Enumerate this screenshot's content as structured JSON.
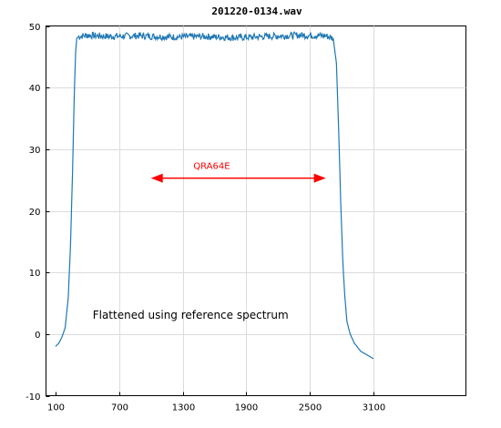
{
  "chart_data": {
    "type": "line",
    "title": "201220-0134.wav",
    "xlabel": "",
    "ylabel": "",
    "xlim": [
      0,
      4000
    ],
    "ylim": [
      -10,
      50
    ],
    "xticks": [
      100,
      700,
      1300,
      1900,
      2500,
      3100
    ],
    "yticks": [
      -10,
      0,
      10,
      20,
      30,
      40,
      50
    ],
    "grid": true,
    "series": [
      {
        "color": "#1f77b4",
        "x": [
          100,
          130,
          160,
          190,
          220,
          240,
          260,
          275,
          290,
          300,
          320,
          400,
          600,
          900,
          1200,
          1500,
          1800,
          2100,
          2400,
          2650,
          2720,
          2750,
          2770,
          2790,
          2810,
          2830,
          2850,
          2880,
          2920,
          2980,
          3050,
          3100
        ],
        "y": [
          -2,
          -1.5,
          -0.5,
          1,
          6,
          14,
          26,
          38,
          46,
          48,
          48.3,
          48.5,
          48.3,
          48.4,
          48.2,
          48.3,
          48.1,
          48.3,
          48.5,
          48.4,
          48,
          44,
          34,
          22,
          12,
          6,
          2,
          0,
          -1.5,
          -2.8,
          -3.5,
          -4
        ]
      }
    ],
    "annotations": [
      {
        "text": "Flattened using reference spectrum",
        "x": 450,
        "y": 2.5,
        "color": "#000000"
      },
      {
        "text": "QRA64E",
        "x": 1400,
        "y": 26.8,
        "color": "#ff0000"
      }
    ],
    "arrow": {
      "x1": 1000,
      "x2": 2650,
      "y": 25.3,
      "color": "#ff0000"
    }
  }
}
